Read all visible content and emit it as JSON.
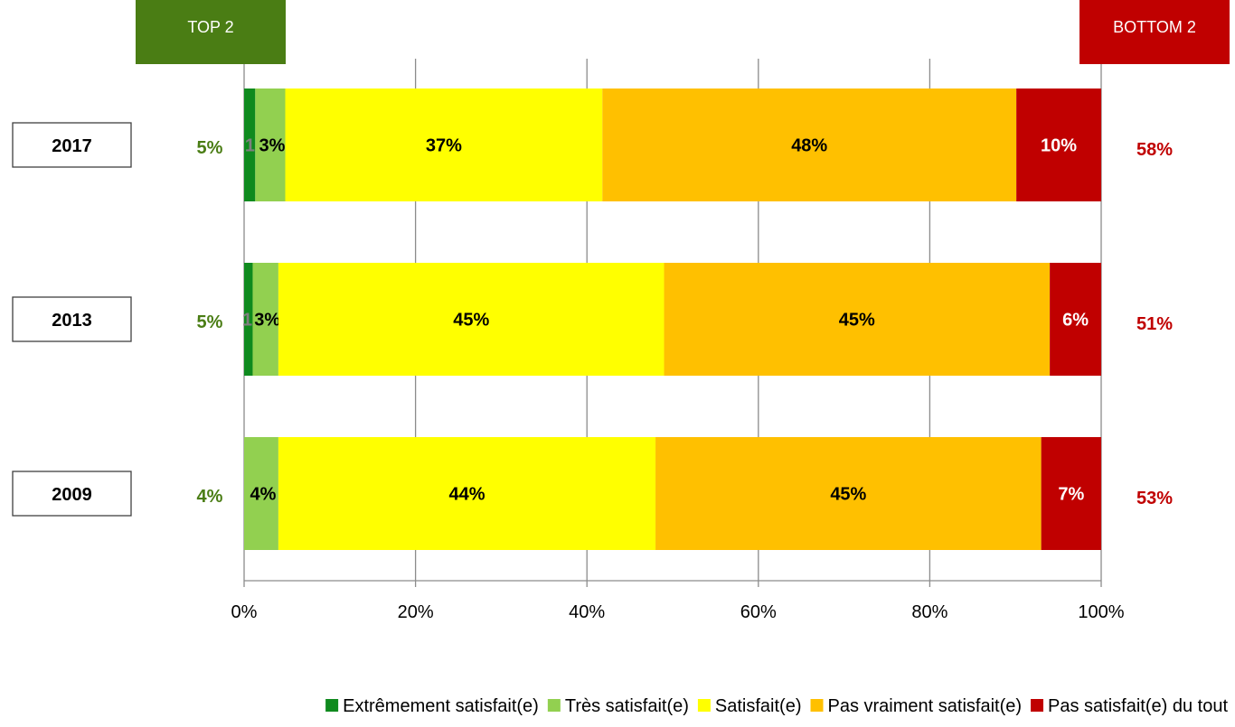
{
  "chart_data": {
    "type": "bar",
    "orientation": "horizontal",
    "stacked": true,
    "categories": [
      "2017",
      "2013",
      "2009"
    ],
    "series": [
      {
        "name": "Extrêmement satisfait(e)",
        "color": "#0f8a1e",
        "values": [
          1.3,
          1,
          0
        ],
        "labels": [
          "1%",
          "1%",
          ""
        ]
      },
      {
        "name": "Très satisfait(e)",
        "color": "#92d050",
        "values": [
          3.5,
          3,
          4
        ],
        "labels": [
          "3%",
          "3%",
          "4%"
        ]
      },
      {
        "name": "Satisfait(e)",
        "color": "#ffff00",
        "values": [
          37,
          45,
          44
        ],
        "labels": [
          "37%",
          "45%",
          "44%"
        ]
      },
      {
        "name": "Pas vraiment satisfait(e)",
        "color": "#ffc000",
        "values": [
          48.3,
          45,
          45
        ],
        "labels": [
          "48%",
          "45%",
          "45%"
        ]
      },
      {
        "name": "Pas satisfait(e) du tout",
        "color": "#c00000",
        "values": [
          9.9,
          6,
          7
        ],
        "labels": [
          "10%",
          "6%",
          "7%"
        ]
      }
    ],
    "top2": {
      "label": "TOP 2",
      "color": "#4a7d14",
      "values": [
        "5%",
        "5%",
        "4%"
      ]
    },
    "bottom2": {
      "label": "BOTTOM 2",
      "color": "#c00000",
      "values": [
        "58%",
        "51%",
        "53%"
      ]
    },
    "xticks": [
      "0%",
      "20%",
      "40%",
      "60%",
      "80%",
      "100%"
    ],
    "xlim": [
      0,
      100
    ],
    "grid": true,
    "legend": "bottom"
  }
}
